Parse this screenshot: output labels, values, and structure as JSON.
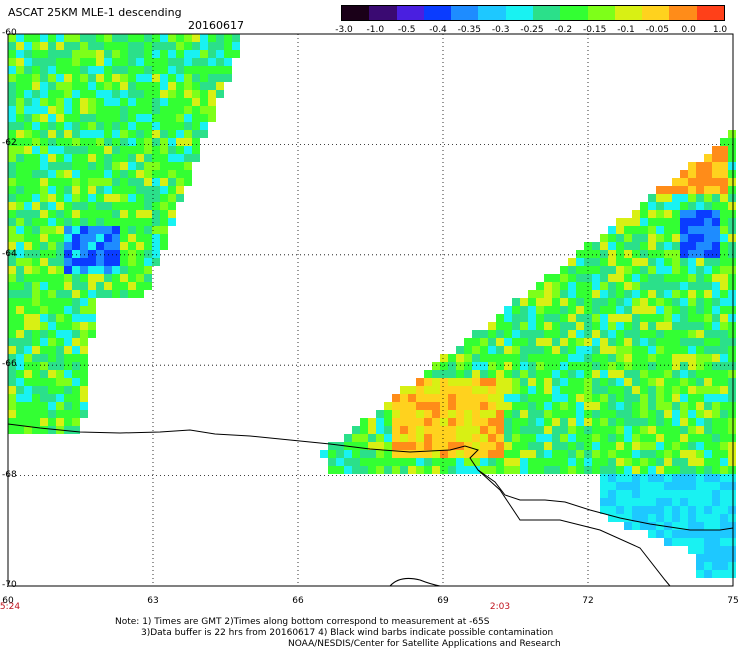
{
  "header": {
    "title": "ASCAT 25KM MLE-1 descending",
    "date": "20160617"
  },
  "colorbar": {
    "labels": [
      "-3.0",
      "-1.0",
      "-0.5",
      "-0.4",
      "-0.35",
      "-0.3",
      "-0.25",
      "-0.2",
      "-0.15",
      "-0.1",
      "-0.05",
      "0.0",
      "1.0"
    ],
    "colors": [
      "#1a0018",
      "#3a0a72",
      "#4a1fe0",
      "#0a3cff",
      "#1e8cff",
      "#1ec8ff",
      "#19f2f2",
      "#2be08a",
      "#33ff33",
      "#7eff19",
      "#d8f014",
      "#ffd21e",
      "#ff8c19",
      "#ff4019"
    ]
  },
  "axes": {
    "x_ticks": [
      "60",
      "63",
      "66",
      "69",
      "72",
      "75"
    ],
    "y_ticks": [
      "-60",
      "-62",
      "-64",
      "-66",
      "-68",
      "-70"
    ]
  },
  "time_labels": {
    "left": "5:24",
    "center": "2:03"
  },
  "notes": {
    "line1": "Note: 1) Times are GMT 2)Times along bottom correspond to measurement at -65S",
    "line2": "3)Data buffer is 22 hrs from 20160617 4) Black wind barbs indicate possible contamination",
    "line3": "NOAA/NESDIS/Center for Satellite Applications and Research"
  },
  "map": {
    "water_color": "#ffffff",
    "grid_color": "#000000",
    "coast_color": "#000000"
  }
}
